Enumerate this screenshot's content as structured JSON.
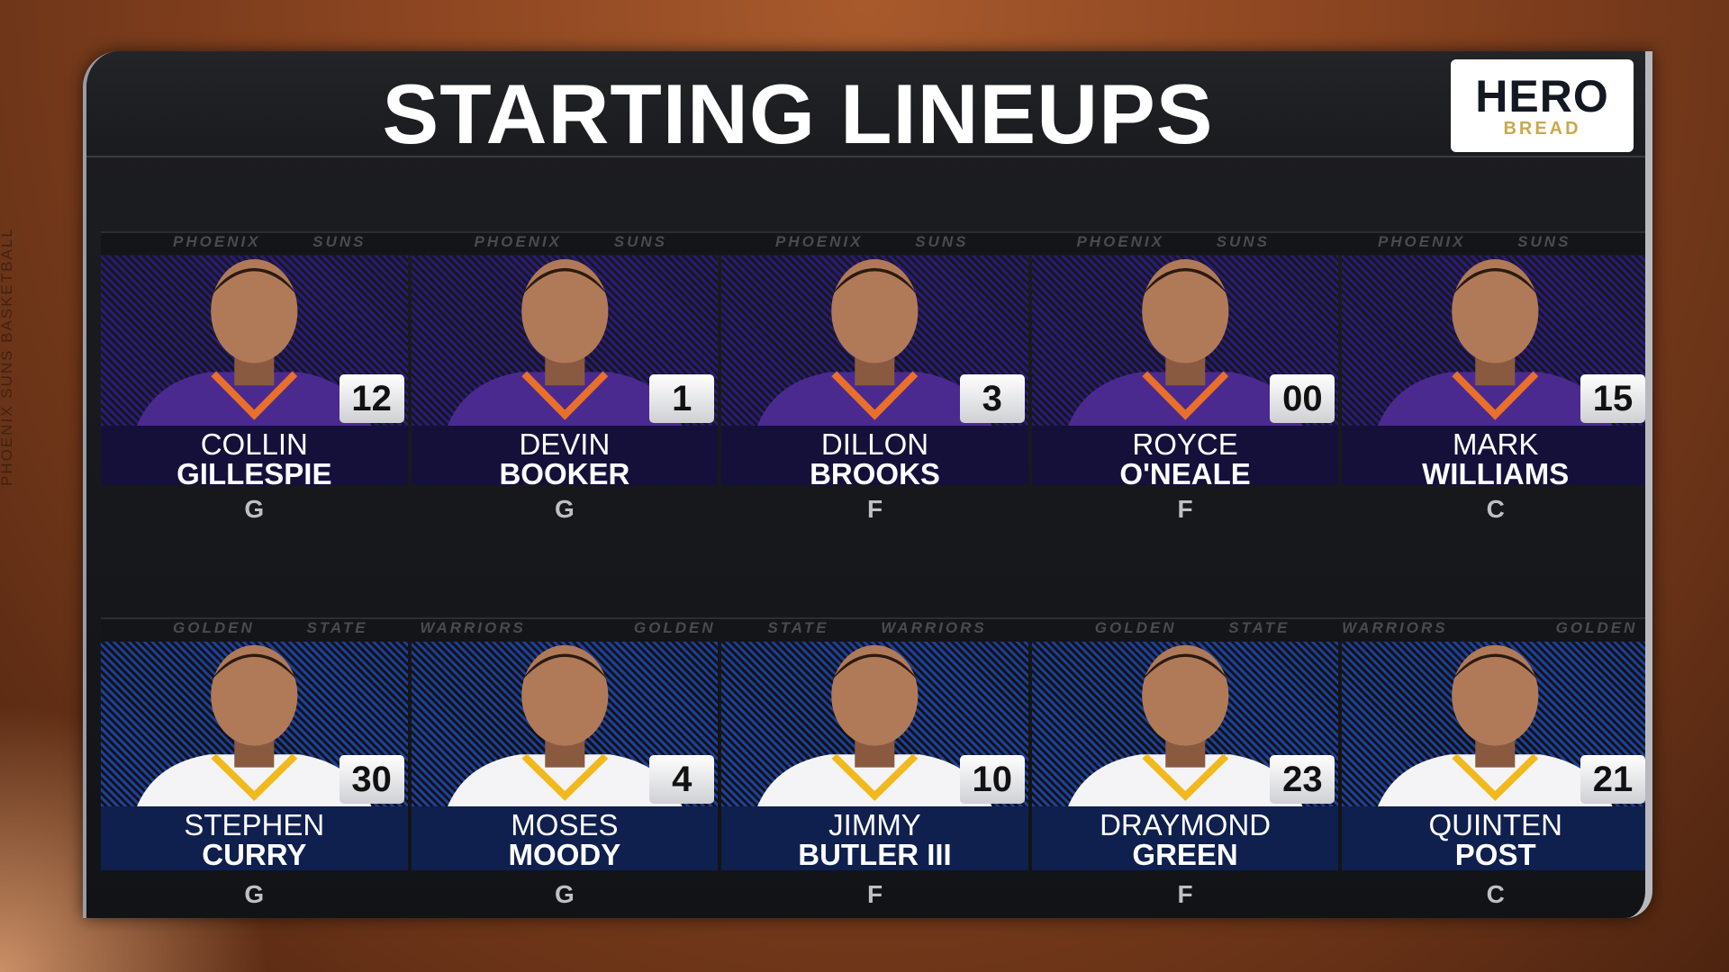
{
  "title": "STARTING LINEUPS",
  "sponsor": {
    "logo_text": "HERO",
    "logo_sub": "BREAD"
  },
  "side_text": "PHOENIX SUNS BASKETBALL",
  "colors": {
    "suns_bg": "#2a1a7a",
    "suns_band": "#14103a",
    "warriors_bg": "#1d3f9a",
    "warriors_band": "#0f1f4e",
    "suns_jersey": "#4b2a90",
    "warriors_jersey": "#f4f4f6"
  },
  "teams": [
    {
      "name": "PHOENIX SUNS",
      "players": [
        {
          "first": "COLLIN",
          "last": "GILLESPIE",
          "number": "12",
          "position": "G"
        },
        {
          "first": "DEVIN",
          "last": "BOOKER",
          "number": "1",
          "position": "G"
        },
        {
          "first": "DILLON",
          "last": "BROOKS",
          "number": "3",
          "position": "F"
        },
        {
          "first": "ROYCE",
          "last": "O'NEALE",
          "number": "00",
          "position": "F"
        },
        {
          "first": "MARK",
          "last": "WILLIAMS",
          "number": "15",
          "position": "C"
        }
      ]
    },
    {
      "name": "GOLDEN STATE WARRIORS",
      "players": [
        {
          "first": "STEPHEN",
          "last": "CURRY",
          "number": "30",
          "position": "G"
        },
        {
          "first": "MOSES",
          "last": "MOODY",
          "number": "4",
          "position": "G"
        },
        {
          "first": "JIMMY",
          "last": "BUTLER III",
          "number": "10",
          "position": "F"
        },
        {
          "first": "DRAYMOND",
          "last": "GREEN",
          "number": "23",
          "position": "F"
        },
        {
          "first": "QUINTEN",
          "last": "POST",
          "number": "21",
          "position": "C"
        }
      ]
    }
  ]
}
